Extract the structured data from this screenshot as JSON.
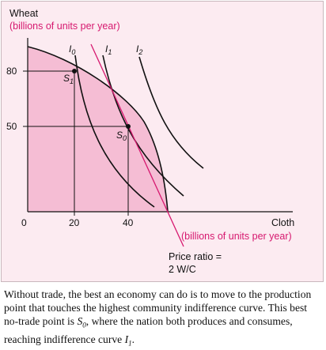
{
  "axes": {
    "y_title": "Wheat",
    "y_unit": "(billions of units per year)",
    "x_title": "Cloth",
    "x_unit": "(billions of units per year)",
    "origin": "0",
    "y_ticks": [
      "80",
      "50"
    ],
    "x_ticks": [
      "20",
      "40"
    ]
  },
  "curves": {
    "i0_label": "I",
    "i0_sub": "0",
    "i1_label": "I",
    "i1_sub": "1",
    "i2_label": "I",
    "i2_sub": "2"
  },
  "points": {
    "s1_label": "S",
    "s1_sub": "1",
    "s0_label": "S",
    "s0_sub": "0"
  },
  "price_ratio": {
    "line1": "Price ratio =",
    "line2": "2 W/C"
  },
  "caption": {
    "part1": "Without trade, the best an economy can do is to move to the production point that touches the highest community indifference curve. This best no-trade point is ",
    "s0_main": "S",
    "s0_sub": "0",
    "part2": ", where the nation both produces and consumes, reaching indifference curve ",
    "i1_main": "I",
    "i1_sub": "1",
    "part3": "."
  },
  "colors": {
    "ppf_fill": "#f5bdd4",
    "background": "#fcebf1",
    "price_line": "#d6186f",
    "curve": "#111111"
  },
  "chart_data": {
    "type": "line",
    "x_unit": "(billions of units per year)",
    "y_unit": "(billions of units per year)",
    "points": [
      {
        "name": "S1",
        "x": 20,
        "y": 80
      },
      {
        "name": "S0",
        "x": 40,
        "y": 50
      }
    ],
    "price_ratio": "2 W/C",
    "indifference_curves": [
      "I0",
      "I1",
      "I2"
    ],
    "x_ticks": [
      20,
      40
    ],
    "y_ticks": [
      50,
      80
    ]
  }
}
